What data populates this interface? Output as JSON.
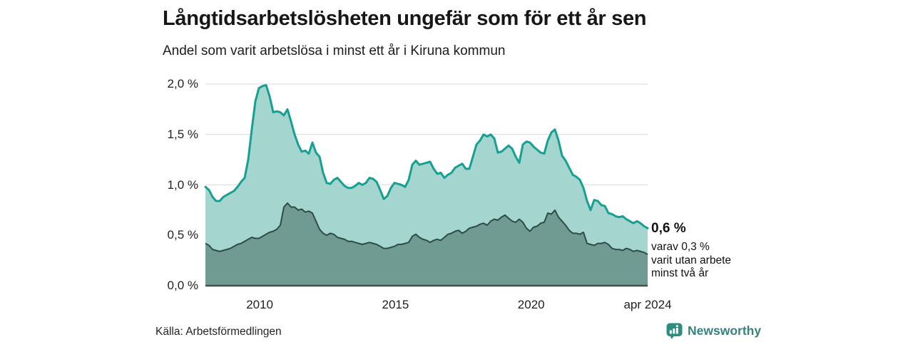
{
  "header": {
    "title": "Långtidsarbetslösheten ungefär som för ett år sen",
    "subtitle": "Andel som varit arbetslösa i minst ett år i Kiruna kommun"
  },
  "annotation": {
    "headline": "0,6 %",
    "line1": "varav 0,3 %",
    "line2": "varit utan arbete",
    "line3": "minst två år"
  },
  "footer": {
    "source": "Källa: Arbetsförmedlingen",
    "brand_name": "Newsworthy"
  },
  "colors": {
    "series1_line": "#17a092",
    "series1_fill": "#a4d5ce",
    "series2_line": "#2e4c47",
    "series2_fill": "#6f9b93",
    "gridline": "#e0e0e0",
    "baseline": "#44514e",
    "brand_teal": "#2f8c80"
  },
  "chart_data": {
    "type": "area",
    "title": "Långtidsarbetslösheten ungefär som för ett år sen",
    "subtitle": "Andel som varit arbetslösa i minst ett år i Kiruna kommun",
    "unit": "%",
    "grid": "horizontal-only",
    "x_range_years": [
      2008.0,
      2024.29
    ],
    "ylim": [
      0.0,
      2.0
    ],
    "y_axis": {
      "tick_labels": [
        "2,0 %",
        "1,5 %",
        "1,0 %",
        "0,5 %",
        "0,0 %"
      ],
      "tick_values": [
        2.0,
        1.5,
        1.0,
        0.5,
        0.0
      ]
    },
    "x_axis": {
      "tick_labels": [
        "2010",
        "2015",
        "2020",
        "apr 2024"
      ],
      "tick_years": [
        2010,
        2015,
        2020,
        2024.29
      ]
    },
    "series": [
      {
        "name": "Arbetslösa minst ett år",
        "end_value_label": "0,6 %",
        "line_color": "#17a092",
        "fill_color": "#a4d5ce",
        "values": [
          0.98,
          0.95,
          0.88,
          0.84,
          0.84,
          0.88,
          0.9,
          0.92,
          0.94,
          0.98,
          1.03,
          1.07,
          1.25,
          1.55,
          1.83,
          1.96,
          1.98,
          1.99,
          1.88,
          1.72,
          1.73,
          1.72,
          1.69,
          1.75,
          1.63,
          1.5,
          1.4,
          1.33,
          1.34,
          1.31,
          1.42,
          1.32,
          1.28,
          1.12,
          1.02,
          1.01,
          1.05,
          1.07,
          1.03,
          0.99,
          0.97,
          0.97,
          0.99,
          1.02,
          1.0,
          1.02,
          1.07,
          1.06,
          1.03,
          0.95,
          0.86,
          0.89,
          0.97,
          1.02,
          1.01,
          1.0,
          0.98,
          1.05,
          1.2,
          1.24,
          1.2,
          1.21,
          1.22,
          1.23,
          1.16,
          1.11,
          1.12,
          1.07,
          1.1,
          1.12,
          1.17,
          1.19,
          1.21,
          1.16,
          1.16,
          1.28,
          1.4,
          1.44,
          1.5,
          1.48,
          1.5,
          1.46,
          1.32,
          1.33,
          1.36,
          1.39,
          1.36,
          1.28,
          1.22,
          1.4,
          1.43,
          1.42,
          1.38,
          1.35,
          1.32,
          1.31,
          1.44,
          1.52,
          1.55,
          1.44,
          1.29,
          1.24,
          1.17,
          1.1,
          1.08,
          1.05,
          0.97,
          0.84,
          0.75,
          0.85,
          0.84,
          0.8,
          0.79,
          0.72,
          0.71,
          0.69,
          0.68,
          0.69,
          0.66,
          0.64,
          0.62,
          0.64,
          0.62,
          0.59,
          0.57
        ]
      },
      {
        "name": "Arbetslösa minst två år",
        "end_value_label": "0,3 %",
        "line_color": "#2e4c47",
        "fill_color": "#6f9b93",
        "values": [
          0.42,
          0.4,
          0.36,
          0.35,
          0.34,
          0.35,
          0.36,
          0.37,
          0.39,
          0.41,
          0.42,
          0.44,
          0.46,
          0.48,
          0.47,
          0.47,
          0.49,
          0.51,
          0.53,
          0.54,
          0.56,
          0.6,
          0.78,
          0.82,
          0.78,
          0.78,
          0.75,
          0.76,
          0.73,
          0.74,
          0.72,
          0.64,
          0.56,
          0.52,
          0.5,
          0.52,
          0.51,
          0.48,
          0.47,
          0.46,
          0.44,
          0.44,
          0.43,
          0.42,
          0.41,
          0.42,
          0.43,
          0.42,
          0.41,
          0.39,
          0.37,
          0.37,
          0.38,
          0.39,
          0.41,
          0.41,
          0.42,
          0.43,
          0.49,
          0.51,
          0.48,
          0.46,
          0.45,
          0.43,
          0.45,
          0.46,
          0.45,
          0.48,
          0.51,
          0.52,
          0.54,
          0.55,
          0.52,
          0.54,
          0.57,
          0.58,
          0.59,
          0.61,
          0.62,
          0.6,
          0.64,
          0.66,
          0.65,
          0.68,
          0.7,
          0.67,
          0.64,
          0.63,
          0.66,
          0.63,
          0.57,
          0.54,
          0.58,
          0.59,
          0.62,
          0.63,
          0.72,
          0.71,
          0.75,
          0.68,
          0.64,
          0.6,
          0.55,
          0.52,
          0.52,
          0.51,
          0.53,
          0.42,
          0.41,
          0.4,
          0.42,
          0.42,
          0.43,
          0.41,
          0.37,
          0.36,
          0.36,
          0.35,
          0.37,
          0.36,
          0.34,
          0.35,
          0.34,
          0.33,
          0.31
        ]
      }
    ],
    "legend": "none",
    "annotations": [
      "0,6 %",
      "varav 0,3 %",
      "varit utan arbete",
      "minst två år"
    ]
  }
}
